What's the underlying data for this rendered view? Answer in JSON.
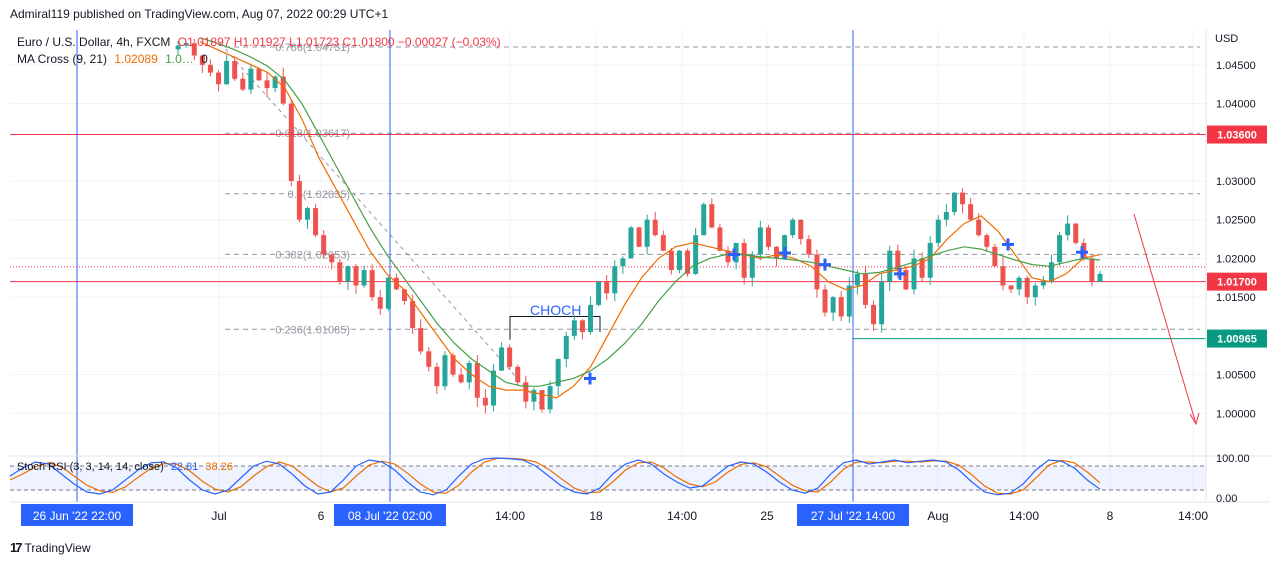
{
  "header": {
    "publisher": "Admiral119 published on TradingView.com, Aug 07, 2022 00:29 UTC+1"
  },
  "legend": {
    "symbol": "Euro / U.S. Dollar, 4h, FXCM",
    "ohlc": "O1.01897 H1.01927 L1.01723 C1.01800 −0.00027 (−0.03%)",
    "ma_label": "MA Cross (9, 21)",
    "ma_value_1": "1.02089",
    "ma_value_2": "1.0…",
    "ma_value_3": "0",
    "stoch_label": "Stoch RSI (3, 3, 14, 14, close)",
    "stoch_k": "22.81",
    "stoch_d": "38.26"
  },
  "axis": {
    "currency": "USD"
  },
  "annotation": {
    "choch": "CHOCH"
  },
  "footer": {
    "brand": "TradingView"
  },
  "colors": {
    "up": "#26a69a",
    "down": "#ef5350",
    "ma_fast": "#ef6c00",
    "ma_slow": "#43a047",
    "line_red": "#f23645",
    "line_green": "#089981",
    "vline_blue": "#2962ff",
    "stoch_k": "#2962ff",
    "stoch_d": "#ef6c00"
  },
  "chart_data": {
    "type": "candlestick",
    "symbol": "EURUSD",
    "timeframe": "4h",
    "y_range": [
      0.995,
      1.0495
    ],
    "y_ticks": [
      "1.00000",
      "1.00500",
      "1.01500",
      "1.02000",
      "1.02500",
      "1.03000",
      "1.04000",
      "1.04500"
    ],
    "x_ticks": [
      "Jul",
      "6",
      "14:00",
      "18",
      "14:00",
      "25",
      "Aug",
      "14:00",
      "8",
      "14:00"
    ],
    "time_labels": [
      "26 Jun '22  22:00",
      "08 Jul '22  02:00",
      "27 Jul '22  14:00"
    ],
    "price_tags": [
      {
        "value": "1.03600",
        "price": 1.036,
        "color": "#f23645"
      },
      {
        "value": "1.01700",
        "price": 1.017,
        "color": "#f23645"
      },
      {
        "value": "1.00965",
        "price": 1.00965,
        "color": "#089981"
      }
    ],
    "fib_levels": [
      {
        "label": "0.786(1.04731)",
        "price": 1.04731
      },
      {
        "label": "0.618(1.03617)",
        "price": 1.03617
      },
      {
        "label": "0.5(1.02835)",
        "price": 1.02835
      },
      {
        "label": "0.382(1.02053)",
        "price": 1.02053
      },
      {
        "label": "0.236(1.01085)",
        "price": 1.01085
      }
    ],
    "current_price": 1.018,
    "price_path": [
      1.047,
      1.0475,
      1.0478,
      1.0462,
      1.045,
      1.044,
      1.0425,
      1.0455,
      1.0432,
      1.0418,
      1.0445,
      1.043,
      1.042,
      1.0435,
      1.04,
      1.03,
      1.025,
      1.0265,
      1.023,
      1.0205,
      1.0195,
      1.017,
      1.019,
      1.0165,
      1.0185,
      1.015,
      1.0135,
      1.0175,
      1.016,
      1.0145,
      1.011,
      1.008,
      1.006,
      1.0035,
      1.0075,
      1.005,
      1.004,
      1.0065,
      1.002,
      1.001,
      1.0055,
      1.0085,
      1.006,
      1.004,
      1.0015,
      1.003,
      1.0005,
      1.0035,
      1.007,
      1.01,
      1.012,
      1.0105,
      1.014,
      1.017,
      1.0155,
      1.019,
      1.02,
      1.024,
      1.0215,
      1.025,
      1.023,
      1.021,
      1.0185,
      1.021,
      1.018,
      1.023,
      1.027,
      1.024,
      1.021,
      1.0195,
      1.022,
      1.0175,
      1.0205,
      1.024,
      1.0215,
      1.02,
      1.023,
      1.025,
      1.0225,
      1.0205,
      1.016,
      1.013,
      1.015,
      1.0125,
      1.0165,
      1.018,
      1.014,
      1.0115,
      1.017,
      1.021,
      1.0185,
      1.016,
      1.02,
      1.0175,
      1.022,
      1.025,
      1.026,
      1.0285,
      1.027,
      1.025,
      1.023,
      1.0215,
      1.019,
      1.0165,
      1.016,
      1.0175,
      1.015,
      1.0165,
      1.017,
      1.0195,
      1.023,
      1.0245,
      1.022,
      1.02,
      1.017,
      1.018
    ],
    "ma_fast": [
      1.048,
      1.047,
      1.046,
      1.045,
      1.044,
      1.042,
      1.038,
      1.033,
      1.029,
      1.025,
      1.021,
      1.018,
      1.016,
      1.013,
      1.01,
      1.007,
      1.005,
      1.0035,
      1.003,
      1.003,
      1.0025,
      1.002,
      1.0035,
      1.006,
      1.01,
      1.014,
      1.0175,
      1.02,
      1.0215,
      1.022,
      1.0215,
      1.021,
      1.0205,
      1.02,
      1.0205,
      1.02,
      1.019,
      1.017,
      1.016,
      1.0165,
      1.018,
      1.0185,
      1.019,
      1.02,
      1.0225,
      1.0245,
      1.0255,
      1.0235,
      1.0205,
      1.0175,
      1.017,
      1.018,
      1.02,
      1.0205
    ],
    "ma_slow": [
      1.0485,
      1.0478,
      1.047,
      1.046,
      1.0448,
      1.043,
      1.04,
      1.036,
      1.032,
      1.028,
      1.024,
      1.0205,
      1.0175,
      1.0145,
      1.0115,
      1.009,
      1.007,
      1.0055,
      1.004,
      1.0035,
      1.0035,
      1.004,
      1.0045,
      1.0055,
      1.007,
      1.009,
      1.0115,
      1.0145,
      1.017,
      1.019,
      1.02,
      1.0205,
      1.0205,
      1.0202,
      1.02,
      1.0198,
      1.0195,
      1.019,
      1.0185,
      1.018,
      1.0182,
      1.0188,
      1.0195,
      1.0203,
      1.021,
      1.0215,
      1.0212,
      1.0205,
      1.0198,
      1.0192,
      1.019,
      1.0195,
      1.02,
      1.0198
    ],
    "stoch_k": [
      55,
      75,
      90,
      85,
      60,
      35,
      15,
      10,
      20,
      45,
      70,
      88,
      90,
      75,
      45,
      20,
      10,
      20,
      50,
      80,
      92,
      85,
      60,
      30,
      10,
      15,
      45,
      80,
      95,
      90,
      70,
      40,
      15,
      8,
      20,
      55,
      85,
      98,
      100,
      98,
      95,
      80,
      55,
      30,
      15,
      10,
      25,
      60,
      85,
      95,
      85,
      60,
      40,
      25,
      30,
      55,
      80,
      90,
      85,
      65,
      40,
      20,
      12,
      25,
      60,
      88,
      95,
      85,
      90,
      95,
      88,
      92,
      95,
      90,
      70,
      40,
      15,
      8,
      12,
      35,
      70,
      95,
      92,
      75,
      45,
      22
    ],
    "stoch_d": [
      45,
      60,
      78,
      88,
      78,
      55,
      32,
      18,
      14,
      28,
      52,
      74,
      86,
      85,
      68,
      42,
      22,
      15,
      28,
      55,
      78,
      90,
      80,
      55,
      30,
      15,
      25,
      55,
      82,
      92,
      85,
      62,
      35,
      15,
      12,
      32,
      65,
      90,
      99,
      99,
      97,
      90,
      72,
      48,
      25,
      13,
      15,
      40,
      70,
      88,
      90,
      75,
      52,
      35,
      28,
      40,
      65,
      84,
      88,
      78,
      55,
      32,
      18,
      15,
      40,
      72,
      90,
      90,
      88,
      92,
      92,
      90,
      93,
      92,
      82,
      58,
      30,
      12,
      10,
      20,
      50,
      82,
      94,
      88,
      65,
      38
    ],
    "stoch_y_ticks": [
      "100.00",
      "0.00"
    ],
    "stoch_bands": [
      80,
      20
    ]
  }
}
